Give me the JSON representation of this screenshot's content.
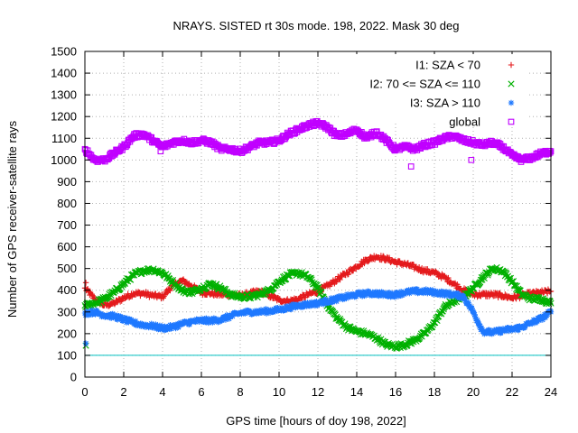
{
  "chart_data": {
    "type": "scatter",
    "title": "NRAYS. SISTED rt 30s mode. 198, 2022. Mask 30 deg",
    "xlabel": "GPS time [hours of doy 198, 2022]",
    "ylabel": "Number of GPS receiver-satellite rays",
    "xlim": [
      0,
      24
    ],
    "ylim": [
      0,
      1500
    ],
    "xticks": [
      "0",
      "2",
      "4",
      "6",
      "8",
      "10",
      "12",
      "14",
      "16",
      "18",
      "20",
      "22",
      "24"
    ],
    "yticks": [
      "0",
      "100",
      "200",
      "300",
      "400",
      "500",
      "600",
      "700",
      "800",
      "900",
      "1000",
      "1100",
      "1200",
      "1300",
      "1400",
      "1500"
    ],
    "grid": true,
    "legend_position": "top-right",
    "reference_line": {
      "y": 100,
      "color": "#00c0c0"
    },
    "series": [
      {
        "name": "I1: SZA < 70",
        "marker": "plus",
        "color": "#e41a1c",
        "x": [
          0,
          0.5,
          1,
          1.5,
          2,
          2.5,
          3,
          3.5,
          4,
          4.5,
          5,
          5.5,
          6,
          6.5,
          7,
          7.5,
          8,
          8.5,
          9,
          9.5,
          10,
          10.5,
          11,
          11.5,
          12,
          12.5,
          13,
          13.5,
          14,
          14.5,
          15,
          15.5,
          16,
          16.5,
          17,
          17.5,
          18,
          18.5,
          19,
          19.5,
          20,
          20.5,
          21,
          21.5,
          22,
          22.5,
          23,
          23.5,
          24
        ],
        "values": [
          410,
          360,
          330,
          340,
          365,
          385,
          385,
          375,
          370,
          420,
          445,
          420,
          390,
          385,
          380,
          380,
          375,
          385,
          395,
          375,
          355,
          350,
          360,
          380,
          395,
          420,
          450,
          480,
          510,
          540,
          555,
          545,
          530,
          520,
          505,
          490,
          480,
          460,
          430,
          400,
          380,
          380,
          380,
          375,
          365,
          375,
          385,
          390,
          395
        ]
      },
      {
        "name": "I2: 70 <= SZA <= 110",
        "marker": "cross",
        "color": "#00b000",
        "x": [
          0,
          0.5,
          1,
          1.5,
          2,
          2.5,
          3,
          3.5,
          4,
          4.5,
          5,
          5.5,
          6,
          6.5,
          7,
          7.5,
          8,
          8.5,
          9,
          9.5,
          10,
          10.5,
          11,
          11.5,
          12,
          12.5,
          13,
          13.5,
          14,
          14.5,
          15,
          15.5,
          16,
          16.5,
          17,
          17.5,
          18,
          18.5,
          19,
          19.5,
          20,
          20.5,
          21,
          21.5,
          22,
          22.5,
          23,
          23.5,
          24
        ],
        "values": [
          330,
          340,
          360,
          390,
          430,
          470,
          490,
          495,
          480,
          440,
          400,
          390,
          410,
          430,
          410,
          380,
          370,
          370,
          380,
          400,
          440,
          470,
          480,
          460,
          410,
          330,
          270,
          230,
          210,
          200,
          180,
          150,
          140,
          150,
          170,
          200,
          250,
          320,
          350,
          370,
          410,
          460,
          500,
          490,
          440,
          380,
          360,
          360,
          340
        ]
      },
      {
        "name": "I3: SZA > 110",
        "marker": "star",
        "color": "#1e78ff",
        "x": [
          0,
          0.5,
          1,
          1.5,
          2,
          2.5,
          3,
          3.5,
          4,
          4.5,
          5,
          5.5,
          6,
          6.5,
          7,
          7.5,
          8,
          8.5,
          9,
          9.5,
          10,
          10.5,
          11,
          11.5,
          12,
          12.5,
          13,
          13.5,
          14,
          14.5,
          15,
          15.5,
          16,
          16.5,
          17,
          17.5,
          18,
          18.5,
          19,
          19.5,
          20,
          20.5,
          21,
          21.5,
          22,
          22.5,
          23,
          23.5,
          24
        ],
        "values": [
          295,
          300,
          285,
          280,
          265,
          250,
          240,
          235,
          225,
          230,
          245,
          255,
          260,
          260,
          265,
          280,
          295,
          300,
          300,
          305,
          310,
          320,
          330,
          335,
          340,
          350,
          360,
          370,
          380,
          385,
          385,
          380,
          380,
          390,
          395,
          395,
          390,
          385,
          380,
          370,
          300,
          210,
          205,
          215,
          220,
          230,
          250,
          270,
          300
        ]
      },
      {
        "name": "global",
        "marker": "square",
        "color": "#c000ff",
        "x": [
          0,
          0.5,
          1,
          1.5,
          2,
          2.5,
          3,
          3.5,
          4,
          4.5,
          5,
          5.5,
          6,
          6.5,
          7,
          7.5,
          8,
          8.5,
          9,
          9.5,
          10,
          10.5,
          11,
          11.5,
          12,
          12.5,
          13,
          13.5,
          14,
          14.5,
          15,
          15.5,
          16,
          16.5,
          17,
          17.5,
          18,
          18.5,
          19,
          19.5,
          20,
          20.5,
          21,
          21.5,
          22,
          22.5,
          23,
          23.5,
          24
        ],
        "values": [
          1050,
          1000,
          1000,
          1030,
          1060,
          1110,
          1120,
          1090,
          1060,
          1080,
          1090,
          1080,
          1090,
          1080,
          1050,
          1050,
          1040,
          1060,
          1080,
          1080,
          1090,
          1120,
          1140,
          1160,
          1170,
          1150,
          1110,
          1120,
          1140,
          1100,
          1130,
          1090,
          1050,
          1060,
          1050,
          1070,
          1080,
          1100,
          1110,
          1090,
          1080,
          1070,
          1080,
          1060,
          1020,
          1000,
          1010,
          1030,
          1040
        ]
      }
    ],
    "outliers": [
      {
        "series": "I1: SZA < 70",
        "x": 0.05,
        "y": 435
      },
      {
        "series": "I2: 70 <= SZA <= 110",
        "x": 0.05,
        "y": 145
      },
      {
        "series": "I3: SZA > 110",
        "x": 0.05,
        "y": 155
      },
      {
        "series": "global",
        "x": 16.8,
        "y": 970
      },
      {
        "series": "global",
        "x": 19.9,
        "y": 1000
      },
      {
        "series": "global",
        "x": 3.9,
        "y": 1040
      }
    ]
  }
}
